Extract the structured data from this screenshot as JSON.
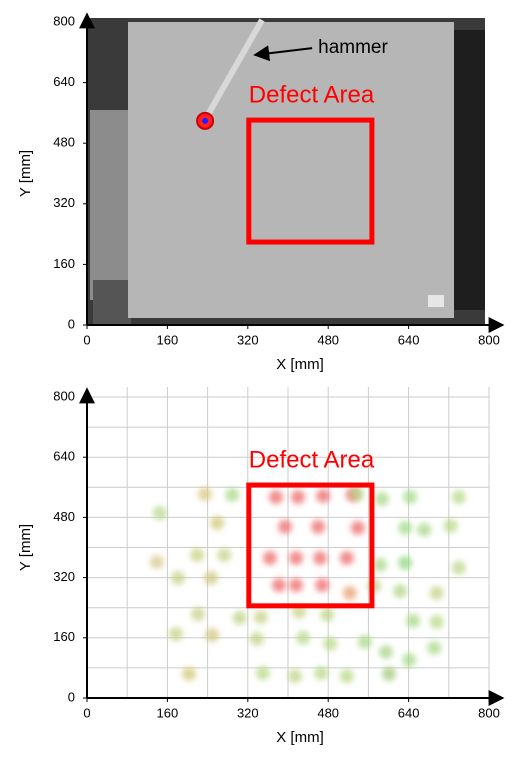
{
  "chart_data": [
    {
      "type": "image",
      "xlabel": "X [mm]",
      "ylabel": "Y [mm]",
      "xlim": [
        0,
        800
      ],
      "ylim": [
        0,
        800
      ],
      "xticks": [
        0,
        160,
        320,
        480,
        640,
        800
      ],
      "yticks": [
        0,
        160,
        320,
        480,
        640,
        800
      ],
      "impact_point": {
        "x": 235,
        "y": 539
      },
      "annotations": [
        {
          "text": "hammer",
          "x": 460,
          "y": 731,
          "arrow_to": {
            "x": 334,
            "y": 713
          }
        },
        {
          "text": "Defect Area",
          "x": [
            322,
            567
          ],
          "y": [
            219,
            541
          ],
          "color": "#ff0000"
        }
      ]
    },
    {
      "type": "scatter",
      "xlabel": "X [mm]",
      "ylabel": "Y [mm]",
      "xlim": [
        0,
        800
      ],
      "ylim": [
        0,
        800
      ],
      "xticks": [
        0,
        160,
        320,
        480,
        640,
        800
      ],
      "yticks": [
        0,
        160,
        320,
        480,
        640,
        800
      ],
      "grid": true,
      "x": [
        376,
        420,
        470,
        529,
        394,
        460,
        539,
        364,
        416,
        464,
        517,
        382,
        416,
        468,
        523,
        145,
        235,
        259,
        289,
        139,
        181,
        219,
        247,
        273,
        221,
        249,
        177,
        203,
        304,
        338,
        350,
        414,
        466,
        517,
        553,
        601,
        595,
        641,
        691,
        649,
        696,
        696,
        740,
        633,
        583,
        571,
        623,
        633,
        671,
        724,
        740,
        643,
        587,
        537,
        346,
        422,
        478,
        430,
        484
      ],
      "values": [
        534,
        534,
        537,
        540,
        455,
        455,
        452,
        372,
        372,
        372,
        372,
        300,
        300,
        300,
        279,
        492,
        542,
        465,
        540,
        361,
        319,
        380,
        319,
        380,
        223,
        167,
        170,
        64,
        213,
        157,
        66,
        58,
        66,
        58,
        149,
        64,
        122,
        101,
        133,
        205,
        202,
        279,
        346,
        359,
        354,
        298,
        284,
        452,
        447,
        457,
        534,
        534,
        529,
        542,
        215,
        229,
        221,
        160,
        144
      ],
      "colors": [
        "#ee6a6a",
        "#ee6a6a",
        "#ee6a6a",
        "#ee6a6a",
        "#ee6a6a",
        "#ee6a6a",
        "#ee6a6a",
        "#ee6a6a",
        "#ee6a6a",
        "#ee6a6a",
        "#ee6a6a",
        "#ee6a6a",
        "#ee6a6a",
        "#ee6a6a",
        "#e8a070",
        "#b8d890",
        "#d8c880",
        "#d0c878",
        "#a8d888",
        "#d8c890",
        "#c8d088",
        "#c8d080",
        "#d0c880",
        "#c8d088",
        "#c8d088",
        "#d0c880",
        "#c8d088",
        "#d0c878",
        "#c0d088",
        "#c0d488",
        "#b8d888",
        "#c0d488",
        "#b8d888",
        "#b8d888",
        "#a8d888",
        "#a0c878",
        "#a8d488",
        "#a8d888",
        "#a8d888",
        "#a8d888",
        "#b8d888",
        "#c8d088",
        "#c0d488",
        "#90d880",
        "#a8d888",
        "#c0d088",
        "#b0d488",
        "#a0dc88",
        "#a8d888",
        "#b8d888",
        "#b8d888",
        "#a0dc88",
        "#a8d888",
        "#b0d888",
        "#c8d088",
        "#c8d088",
        "#c0d488",
        "#b8d888",
        "#b8d888"
      ],
      "annotations": [
        {
          "text": "Defect Area",
          "x": [
            322,
            567
          ],
          "y": [
            245,
            566
          ],
          "color": "#ff0000"
        }
      ]
    }
  ]
}
